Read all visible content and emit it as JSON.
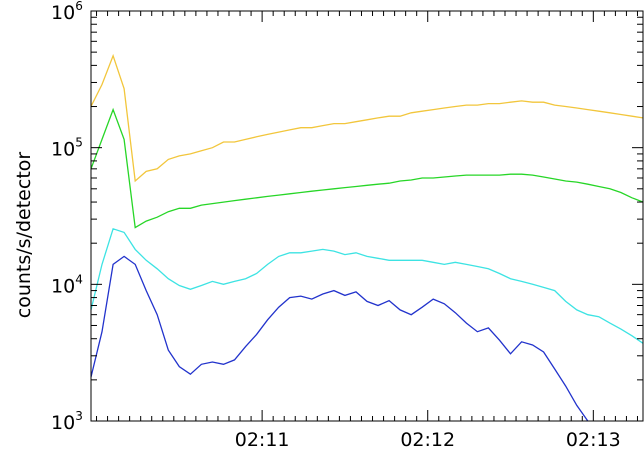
{
  "chart_data": {
    "type": "line",
    "title": "",
    "ylabel": "counts/s/detector",
    "xlabel": "",
    "yscale": "log",
    "ylim": [
      1000,
      1000000
    ],
    "xlim": [
      0,
      100
    ],
    "x_tick_labels": [
      {
        "x": 31,
        "label": "02:11"
      },
      {
        "x": 61,
        "label": "02:12"
      },
      {
        "x": 91,
        "label": "02:13"
      }
    ],
    "y_tick_labels": [
      {
        "y": 1000,
        "base": "10",
        "exp": "3"
      },
      {
        "y": 10000,
        "base": "10",
        "exp": "4"
      },
      {
        "y": 100000,
        "base": "10",
        "exp": "5"
      },
      {
        "y": 1000000,
        "base": "10",
        "exp": "6"
      }
    ],
    "grid": false,
    "series": [
      {
        "color": "#f2c63c",
        "points": [
          [
            0,
            200000
          ],
          [
            2,
            290000
          ],
          [
            4,
            470000
          ],
          [
            6,
            270000
          ],
          [
            8,
            57000
          ],
          [
            10,
            67000
          ],
          [
            12,
            70000
          ],
          [
            14,
            82000
          ],
          [
            16,
            87000
          ],
          [
            18,
            90000
          ],
          [
            20,
            95000
          ],
          [
            22,
            100000
          ],
          [
            24,
            110000
          ],
          [
            26,
            110000
          ],
          [
            28,
            115000
          ],
          [
            30,
            120000
          ],
          [
            32,
            125000
          ],
          [
            34,
            130000
          ],
          [
            36,
            135000
          ],
          [
            38,
            140000
          ],
          [
            40,
            140000
          ],
          [
            42,
            145000
          ],
          [
            44,
            150000
          ],
          [
            46,
            150000
          ],
          [
            48,
            155000
          ],
          [
            50,
            160000
          ],
          [
            52,
            165000
          ],
          [
            54,
            170000
          ],
          [
            56,
            170000
          ],
          [
            58,
            180000
          ],
          [
            60,
            185000
          ],
          [
            62,
            190000
          ],
          [
            64,
            195000
          ],
          [
            66,
            200000
          ],
          [
            68,
            205000
          ],
          [
            70,
            205000
          ],
          [
            72,
            210000
          ],
          [
            74,
            210000
          ],
          [
            76,
            215000
          ],
          [
            78,
            220000
          ],
          [
            80,
            215000
          ],
          [
            82,
            215000
          ],
          [
            84,
            205000
          ],
          [
            86,
            200000
          ],
          [
            88,
            195000
          ],
          [
            90,
            190000
          ],
          [
            92,
            185000
          ],
          [
            94,
            180000
          ],
          [
            96,
            175000
          ],
          [
            98,
            170000
          ],
          [
            100,
            165000
          ]
        ]
      },
      {
        "color": "#27d627",
        "points": [
          [
            0,
            70000
          ],
          [
            2,
            115000
          ],
          [
            4,
            190000
          ],
          [
            6,
            115000
          ],
          [
            8,
            26000
          ],
          [
            10,
            29000
          ],
          [
            12,
            31000
          ],
          [
            14,
            34000
          ],
          [
            16,
            36000
          ],
          [
            18,
            36000
          ],
          [
            20,
            38000
          ],
          [
            22,
            39000
          ],
          [
            24,
            40000
          ],
          [
            26,
            41000
          ],
          [
            28,
            42000
          ],
          [
            30,
            43000
          ],
          [
            32,
            44000
          ],
          [
            34,
            45000
          ],
          [
            36,
            46000
          ],
          [
            38,
            47000
          ],
          [
            40,
            48000
          ],
          [
            42,
            49000
          ],
          [
            44,
            50000
          ],
          [
            46,
            51000
          ],
          [
            48,
            52000
          ],
          [
            50,
            53000
          ],
          [
            52,
            54000
          ],
          [
            54,
            55000
          ],
          [
            56,
            57000
          ],
          [
            58,
            58000
          ],
          [
            60,
            60000
          ],
          [
            62,
            60000
          ],
          [
            64,
            61000
          ],
          [
            66,
            62000
          ],
          [
            68,
            63000
          ],
          [
            70,
            63000
          ],
          [
            72,
            63000
          ],
          [
            74,
            63000
          ],
          [
            76,
            64000
          ],
          [
            78,
            64000
          ],
          [
            80,
            63000
          ],
          [
            82,
            61000
          ],
          [
            84,
            59000
          ],
          [
            86,
            57000
          ],
          [
            88,
            56000
          ],
          [
            90,
            54000
          ],
          [
            92,
            52000
          ],
          [
            94,
            50000
          ],
          [
            96,
            47000
          ],
          [
            98,
            43000
          ],
          [
            100,
            40000
          ]
        ]
      },
      {
        "color": "#3de3e3",
        "points": [
          [
            0,
            6500
          ],
          [
            2,
            14000
          ],
          [
            4,
            25500
          ],
          [
            6,
            24000
          ],
          [
            8,
            18000
          ],
          [
            10,
            15000
          ],
          [
            12,
            13000
          ],
          [
            14,
            11000
          ],
          [
            16,
            9800
          ],
          [
            18,
            9200
          ],
          [
            20,
            9800
          ],
          [
            22,
            10500
          ],
          [
            24,
            10000
          ],
          [
            26,
            10500
          ],
          [
            28,
            11000
          ],
          [
            30,
            12000
          ],
          [
            32,
            14000
          ],
          [
            34,
            16000
          ],
          [
            36,
            17000
          ],
          [
            38,
            17000
          ],
          [
            40,
            17500
          ],
          [
            42,
            18000
          ],
          [
            44,
            17500
          ],
          [
            46,
            16500
          ],
          [
            48,
            17000
          ],
          [
            50,
            16000
          ],
          [
            52,
            15500
          ],
          [
            54,
            15000
          ],
          [
            56,
            15000
          ],
          [
            58,
            15000
          ],
          [
            60,
            15000
          ],
          [
            62,
            14500
          ],
          [
            64,
            14000
          ],
          [
            66,
            14500
          ],
          [
            68,
            14000
          ],
          [
            70,
            13500
          ],
          [
            72,
            13000
          ],
          [
            74,
            12000
          ],
          [
            76,
            11000
          ],
          [
            78,
            10500
          ],
          [
            80,
            10000
          ],
          [
            82,
            9500
          ],
          [
            84,
            9000
          ],
          [
            86,
            7500
          ],
          [
            88,
            6500
          ],
          [
            90,
            6000
          ],
          [
            92,
            5800
          ],
          [
            94,
            5200
          ],
          [
            96,
            4700
          ],
          [
            98,
            4200
          ],
          [
            100,
            3700
          ]
        ]
      },
      {
        "color": "#2233cc",
        "points": [
          [
            0,
            2100
          ],
          [
            2,
            4500
          ],
          [
            4,
            14000
          ],
          [
            6,
            16000
          ],
          [
            8,
            14000
          ],
          [
            10,
            9000
          ],
          [
            12,
            6000
          ],
          [
            14,
            3300
          ],
          [
            16,
            2500
          ],
          [
            18,
            2200
          ],
          [
            20,
            2600
          ],
          [
            22,
            2700
          ],
          [
            24,
            2600
          ],
          [
            26,
            2800
          ],
          [
            28,
            3500
          ],
          [
            30,
            4300
          ],
          [
            32,
            5500
          ],
          [
            34,
            6800
          ],
          [
            36,
            8000
          ],
          [
            38,
            8200
          ],
          [
            40,
            7800
          ],
          [
            42,
            8500
          ],
          [
            44,
            9000
          ],
          [
            46,
            8300
          ],
          [
            48,
            8800
          ],
          [
            50,
            7500
          ],
          [
            52,
            7000
          ],
          [
            54,
            7600
          ],
          [
            56,
            6500
          ],
          [
            58,
            6000
          ],
          [
            60,
            6800
          ],
          [
            62,
            7800
          ],
          [
            64,
            7200
          ],
          [
            66,
            6200
          ],
          [
            68,
            5200
          ],
          [
            70,
            4500
          ],
          [
            72,
            4800
          ],
          [
            74,
            3900
          ],
          [
            76,
            3100
          ],
          [
            78,
            3800
          ],
          [
            80,
            3600
          ],
          [
            82,
            3200
          ],
          [
            84,
            2400
          ],
          [
            86,
            1800
          ],
          [
            88,
            1300
          ],
          [
            90,
            1000
          ],
          [
            92,
            950
          ],
          [
            94,
            950
          ]
        ]
      }
    ]
  }
}
